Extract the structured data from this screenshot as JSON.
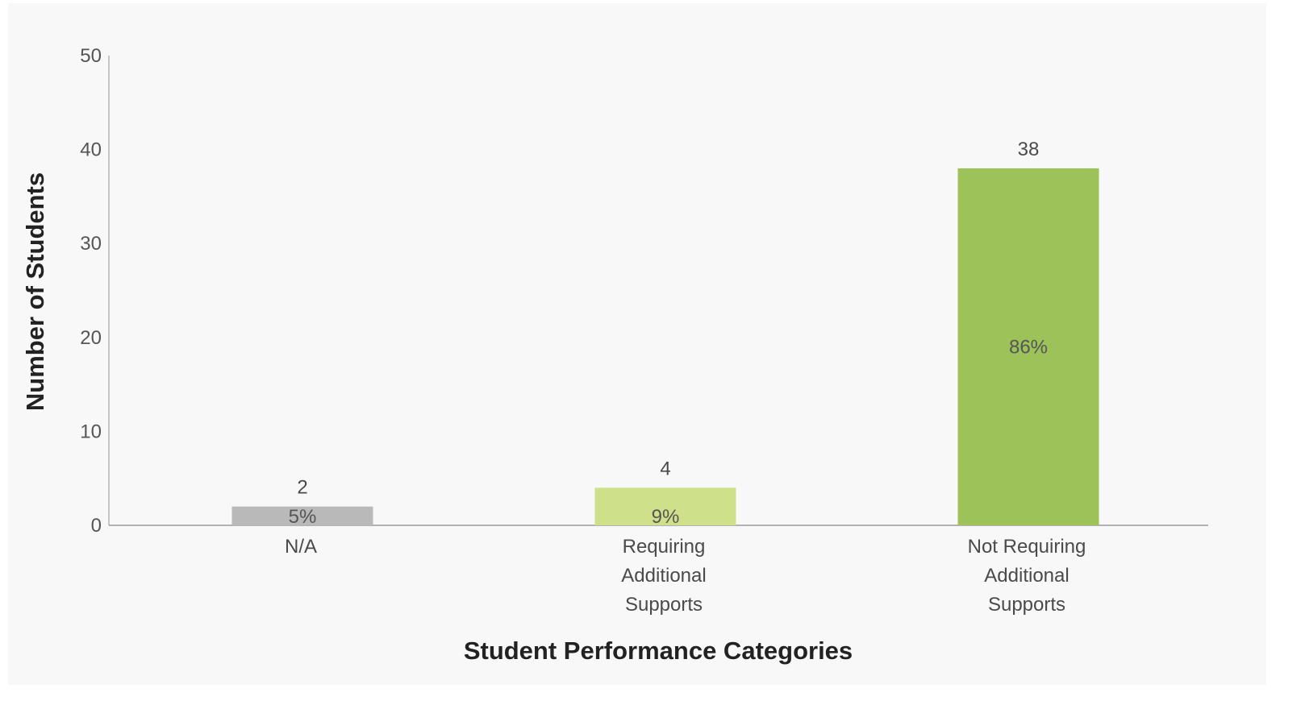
{
  "chart_data": {
    "type": "bar",
    "categories": [
      [
        "N/A"
      ],
      [
        "Requiring",
        "Additional",
        "Supports"
      ],
      [
        "Not Requiring",
        "Additional",
        "Supports"
      ]
    ],
    "values": [
      2,
      4,
      38
    ],
    "value_labels": [
      "2",
      "4",
      "38"
    ],
    "percent_labels": [
      "5%",
      "9%",
      "86%"
    ],
    "colors": [
      "#b9b9b9",
      "#cfe08a",
      "#9dc25a"
    ],
    "xlabel": "Student Performance Categories",
    "ylabel": "Number of Students",
    "ylim": [
      0,
      50
    ],
    "yticks": [
      0,
      10,
      20,
      30,
      40,
      50
    ],
    "grid": false,
    "legend": "none"
  }
}
